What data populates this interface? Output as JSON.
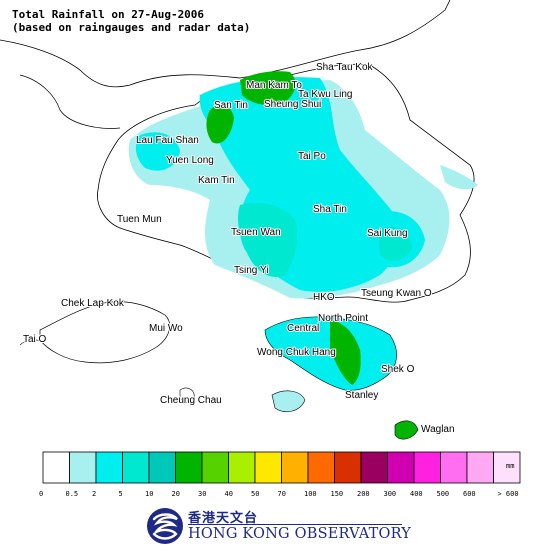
{
  "title": {
    "line1": "Total Rainfall on 27-Aug-2006",
    "line2": "(based on raingauges and radar data)"
  },
  "places": [
    {
      "id": "sha-tau-kok",
      "label": "Sha Tau Kok"
    },
    {
      "id": "man-kam-to",
      "label": "Man Kam To"
    },
    {
      "id": "ta-kwu-ling",
      "label": "Ta Kwu Ling"
    },
    {
      "id": "san-tin",
      "label": "San Tin"
    },
    {
      "id": "sheung-shui",
      "label": "Sheung Shui"
    },
    {
      "id": "lau-fau-shan",
      "label": "Lau Fau Shan"
    },
    {
      "id": "yuen-long",
      "label": "Yuen Long"
    },
    {
      "id": "tai-po",
      "label": "Tai Po"
    },
    {
      "id": "kam-tin",
      "label": "Kam Tin"
    },
    {
      "id": "tuen-mun",
      "label": "Tuen Mun"
    },
    {
      "id": "sha-tin",
      "label": "Sha Tin"
    },
    {
      "id": "tsuen-wan",
      "label": "Tsuen Wan"
    },
    {
      "id": "sai-kung",
      "label": "Sai Kung"
    },
    {
      "id": "tsing-yi",
      "label": "Tsing Yi"
    },
    {
      "id": "chek-lap-kok",
      "label": "Chek Lap Kok"
    },
    {
      "id": "hko",
      "label": "HKO"
    },
    {
      "id": "tseung-kwan-o",
      "label": "Tseung Kwan O"
    },
    {
      "id": "north-point",
      "label": "North Point"
    },
    {
      "id": "mui-wo",
      "label": "Mui Wo"
    },
    {
      "id": "central",
      "label": "Central"
    },
    {
      "id": "tai-o",
      "label": "Tai O"
    },
    {
      "id": "wong-chuk-hang",
      "label": "Wong Chuk Hang"
    },
    {
      "id": "shek-o",
      "label": "Shek O"
    },
    {
      "id": "stanley",
      "label": "Stanley"
    },
    {
      "id": "cheung-chau",
      "label": "Cheung Chau"
    },
    {
      "id": "waglan",
      "label": "Waglan"
    }
  ],
  "legend": {
    "unit": "mm",
    "bins": [
      {
        "color": "#ffffff",
        "tick": "0"
      },
      {
        "color": "#a8f0f0",
        "tick": "0.5"
      },
      {
        "color": "#00eeee",
        "tick": "2"
      },
      {
        "color": "#00e8d0",
        "tick": "5"
      },
      {
        "color": "#00c8b8",
        "tick": "10"
      },
      {
        "color": "#00b400",
        "tick": "20"
      },
      {
        "color": "#55d200",
        "tick": "30"
      },
      {
        "color": "#aaee00",
        "tick": "40"
      },
      {
        "color": "#ffe800",
        "tick": "50"
      },
      {
        "color": "#ffb000",
        "tick": "70"
      },
      {
        "color": "#ff6a00",
        "tick": "100"
      },
      {
        "color": "#d83000",
        "tick": "150"
      },
      {
        "color": "#9a0060",
        "tick": "200"
      },
      {
        "color": "#d000b0",
        "tick": "300"
      },
      {
        "color": "#ff20e0",
        "tick": "400"
      },
      {
        "color": "#ff6ef0",
        "tick": "500"
      },
      {
        "color": "#ffa8f4",
        "tick": "600"
      },
      {
        "color": "#ffe0fc",
        "tick": "> 600"
      }
    ]
  },
  "logo": {
    "chinese": "香港天文台",
    "english": "HONG KONG OBSERVATORY"
  }
}
